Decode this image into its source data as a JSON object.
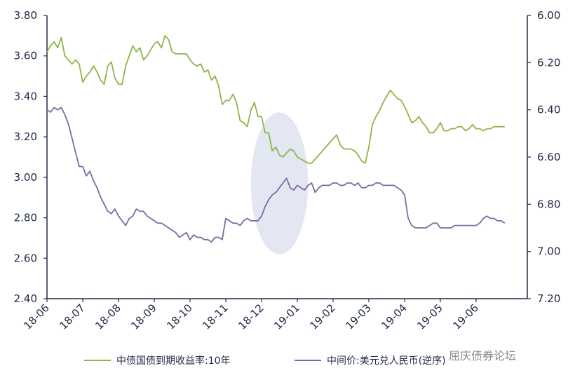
{
  "chart_data": {
    "type": "line",
    "title": "",
    "x_labels": [
      "18-06",
      "18-07",
      "18-08",
      "18-09",
      "18-10",
      "18-11",
      "18-12",
      "19-01",
      "19-02",
      "19-03",
      "19-04",
      "19-05",
      "19-06"
    ],
    "left_axis": {
      "ylim": [
        2.4,
        3.8
      ],
      "ticks": [
        "2.40",
        "2.60",
        "2.80",
        "3.00",
        "3.20",
        "3.40",
        "3.60",
        "3.80"
      ]
    },
    "right_axis": {
      "ylim": [
        6.0,
        7.2
      ],
      "inverted": true,
      "ticks": [
        "6.00",
        "6.20",
        "6.40",
        "6.60",
        "6.80",
        "7.00",
        "7.20"
      ]
    },
    "grid": false,
    "legend_position": "bottom",
    "highlight": {
      "shape": "ellipse",
      "center_x_month": 6.5,
      "center_y_left": 2.97,
      "radius_months": 0.8,
      "radius_left_units": 0.35,
      "color": "#dde3f0"
    },
    "series": [
      {
        "name": "中债国债到期收益率:10年",
        "axis": "left",
        "color": "#8db54a",
        "x": [
          0,
          0.1,
          0.2,
          0.3,
          0.4,
          0.5,
          0.6,
          0.7,
          0.8,
          0.9,
          1.0,
          1.1,
          1.2,
          1.3,
          1.4,
          1.5,
          1.6,
          1.7,
          1.8,
          1.9,
          2.0,
          2.1,
          2.2,
          2.3,
          2.4,
          2.5,
          2.6,
          2.7,
          2.8,
          2.9,
          3.0,
          3.1,
          3.2,
          3.3,
          3.4,
          3.5,
          3.6,
          3.7,
          3.8,
          3.9,
          4.0,
          4.1,
          4.2,
          4.3,
          4.4,
          4.5,
          4.6,
          4.7,
          4.8,
          4.9,
          5.0,
          5.1,
          5.2,
          5.3,
          5.4,
          5.5,
          5.6,
          5.7,
          5.8,
          5.9,
          6.0,
          6.1,
          6.2,
          6.3,
          6.4,
          6.5,
          6.6,
          6.7,
          6.8,
          6.9,
          7.0,
          7.1,
          7.2,
          7.3,
          7.4,
          7.5,
          7.6,
          7.7,
          7.8,
          7.9,
          8.0,
          8.1,
          8.2,
          8.3,
          8.4,
          8.5,
          8.6,
          8.7,
          8.8,
          8.9,
          9.0,
          9.1,
          9.2,
          9.3,
          9.4,
          9.5,
          9.6,
          9.7,
          9.8,
          9.9,
          10.0,
          10.1,
          10.2,
          10.3,
          10.4,
          10.5,
          10.6,
          10.7,
          10.8,
          10.9,
          11.0,
          11.1,
          11.2,
          11.3,
          11.4,
          11.5,
          11.6,
          11.7,
          11.8,
          11.9,
          12.0,
          12.1,
          12.2,
          12.3,
          12.4,
          12.5,
          12.6,
          12.7,
          12.8
        ],
        "values": [
          3.62,
          3.65,
          3.67,
          3.64,
          3.69,
          3.6,
          3.58,
          3.56,
          3.58,
          3.56,
          3.47,
          3.5,
          3.52,
          3.55,
          3.52,
          3.48,
          3.46,
          3.55,
          3.57,
          3.49,
          3.46,
          3.46,
          3.55,
          3.6,
          3.65,
          3.62,
          3.64,
          3.58,
          3.6,
          3.63,
          3.66,
          3.67,
          3.64,
          3.7,
          3.68,
          3.62,
          3.61,
          3.61,
          3.61,
          3.61,
          3.58,
          3.56,
          3.55,
          3.56,
          3.52,
          3.53,
          3.48,
          3.5,
          3.45,
          3.36,
          3.38,
          3.38,
          3.41,
          3.37,
          3.28,
          3.27,
          3.25,
          3.33,
          3.37,
          3.3,
          3.3,
          3.22,
          3.22,
          3.13,
          3.15,
          3.11,
          3.1,
          3.12,
          3.14,
          3.13,
          3.1,
          3.09,
          3.08,
          3.07,
          3.07,
          3.09,
          3.11,
          3.13,
          3.15,
          3.17,
          3.19,
          3.21,
          3.16,
          3.14,
          3.14,
          3.14,
          3.13,
          3.11,
          3.08,
          3.07,
          3.15,
          3.26,
          3.3,
          3.33,
          3.37,
          3.4,
          3.43,
          3.41,
          3.39,
          3.38,
          3.35,
          3.31,
          3.27,
          3.28,
          3.3,
          3.27,
          3.25,
          3.22,
          3.22,
          3.24,
          3.27,
          3.23,
          3.23,
          3.24,
          3.24,
          3.25,
          3.25,
          3.23,
          3.24,
          3.26,
          3.24,
          3.24,
          3.23,
          3.24,
          3.24,
          3.25,
          3.25,
          3.25,
          3.25
        ]
      },
      {
        "name": "中间价:美元兑人民币(逆序)",
        "axis": "right",
        "color": "#7b6aa6",
        "x": [
          0,
          0.1,
          0.2,
          0.3,
          0.4,
          0.5,
          0.6,
          0.7,
          0.8,
          0.9,
          1.0,
          1.1,
          1.2,
          1.3,
          1.4,
          1.5,
          1.6,
          1.7,
          1.8,
          1.9,
          2.0,
          2.1,
          2.2,
          2.3,
          2.4,
          2.5,
          2.6,
          2.7,
          2.8,
          2.9,
          3.0,
          3.1,
          3.2,
          3.3,
          3.4,
          3.5,
          3.6,
          3.7,
          3.8,
          3.9,
          4.0,
          4.1,
          4.2,
          4.3,
          4.4,
          4.5,
          4.6,
          4.7,
          4.8,
          4.9,
          5.0,
          5.1,
          5.2,
          5.3,
          5.4,
          5.5,
          5.6,
          5.7,
          5.8,
          5.9,
          6.0,
          6.1,
          6.2,
          6.3,
          6.4,
          6.5,
          6.6,
          6.7,
          6.8,
          6.9,
          7.0,
          7.1,
          7.2,
          7.3,
          7.4,
          7.5,
          7.6,
          7.7,
          7.8,
          7.9,
          8.0,
          8.1,
          8.2,
          8.3,
          8.4,
          8.5,
          8.6,
          8.7,
          8.8,
          8.9,
          9.0,
          9.1,
          9.2,
          9.3,
          9.4,
          9.5,
          9.6,
          9.7,
          9.8,
          9.9,
          10.0,
          10.1,
          10.2,
          10.3,
          10.4,
          10.5,
          10.6,
          10.7,
          10.8,
          10.9,
          11.0,
          11.1,
          11.2,
          11.3,
          11.4,
          11.5,
          11.6,
          11.7,
          11.8,
          11.9,
          12.0,
          12.1,
          12.2,
          12.3,
          12.4,
          12.5,
          12.6,
          12.7,
          12.8
        ],
        "values": [
          6.4,
          6.41,
          6.39,
          6.4,
          6.39,
          6.42,
          6.46,
          6.52,
          6.58,
          6.64,
          6.64,
          6.68,
          6.66,
          6.7,
          6.73,
          6.77,
          6.8,
          6.83,
          6.84,
          6.82,
          6.85,
          6.87,
          6.89,
          6.86,
          6.85,
          6.82,
          6.83,
          6.83,
          6.85,
          6.86,
          6.87,
          6.88,
          6.88,
          6.89,
          6.9,
          6.91,
          6.92,
          6.94,
          6.93,
          6.92,
          6.95,
          6.93,
          6.94,
          6.94,
          6.95,
          6.95,
          6.96,
          6.94,
          6.94,
          6.95,
          6.86,
          6.87,
          6.88,
          6.88,
          6.89,
          6.87,
          6.86,
          6.87,
          6.87,
          6.87,
          6.85,
          6.81,
          6.78,
          6.76,
          6.75,
          6.73,
          6.71,
          6.69,
          6.73,
          6.74,
          6.72,
          6.73,
          6.74,
          6.72,
          6.71,
          6.75,
          6.73,
          6.72,
          6.72,
          6.72,
          6.71,
          6.71,
          6.72,
          6.72,
          6.71,
          6.71,
          6.72,
          6.71,
          6.73,
          6.73,
          6.72,
          6.72,
          6.71,
          6.71,
          6.72,
          6.72,
          6.72,
          6.72,
          6.73,
          6.74,
          6.76,
          6.86,
          6.89,
          6.9,
          6.9,
          6.9,
          6.9,
          6.89,
          6.88,
          6.88,
          6.9,
          6.9,
          6.9,
          6.9,
          6.89,
          6.89,
          6.89,
          6.89,
          6.89,
          6.89,
          6.89,
          6.88,
          6.86,
          6.85,
          6.86,
          6.86,
          6.87,
          6.87,
          6.88
        ]
      }
    ]
  },
  "watermark": "屈庆债券论坛"
}
